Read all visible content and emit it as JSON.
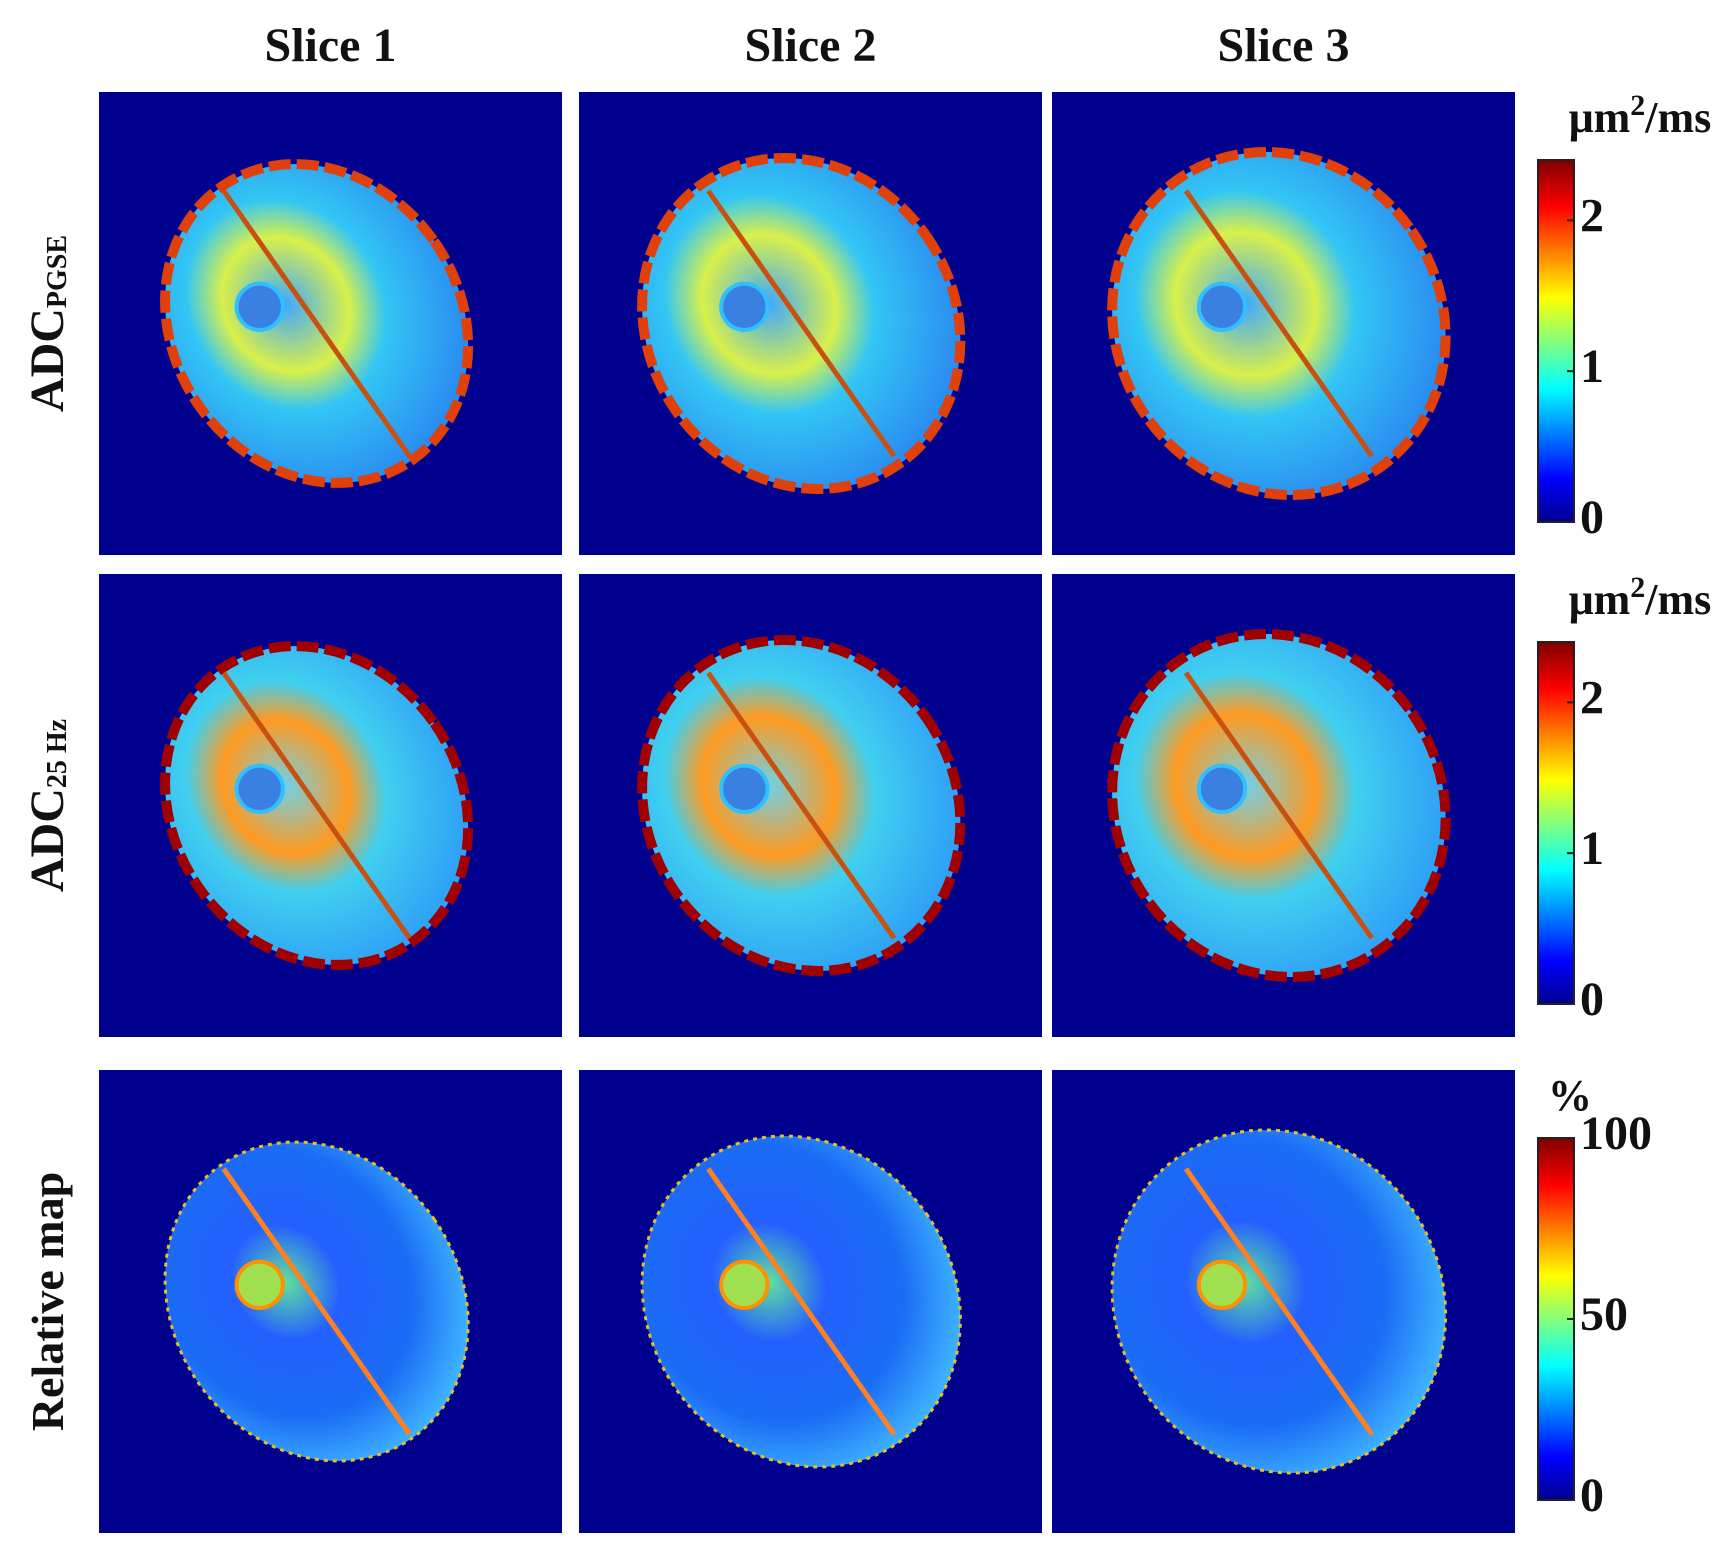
{
  "columns": [
    "Slice 1",
    "Slice 2",
    "Slice 3"
  ],
  "rows": [
    {
      "label": "ADC",
      "sub": "PGSE",
      "colorbar": {
        "unit": {
          "base": "μm",
          "sup": "2",
          "tail": "/ms"
        },
        "lim": [
          0,
          2.4
        ],
        "ticks": [
          0,
          1,
          2
        ]
      }
    },
    {
      "label": "ADC",
      "sub": "25 Hz",
      "colorbar": {
        "unit": {
          "base": "μm",
          "sup": "2",
          "tail": "/ms"
        },
        "lim": [
          0,
          2.4
        ],
        "ticks": [
          0,
          1,
          2
        ]
      }
    },
    {
      "label": "Relative map",
      "colorbar": {
        "unit": {
          "base": "%"
        },
        "lim": [
          0,
          100
        ],
        "ticks": [
          0,
          50,
          100
        ]
      }
    }
  ]
}
